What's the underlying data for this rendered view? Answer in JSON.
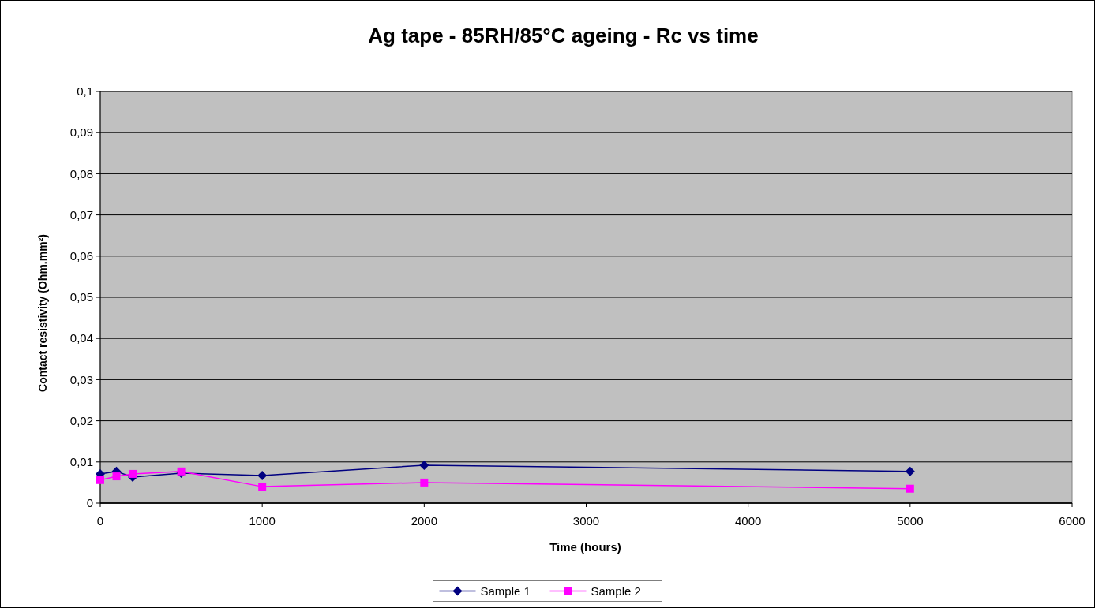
{
  "chart_data": {
    "type": "line",
    "title": "Ag tape - 85RH/85°C ageing - Rc vs time",
    "xlabel": "Time (hours)",
    "ylabel": "Contact resistivity (Ohm.mm²)",
    "x": [
      0,
      100,
      200,
      500,
      1000,
      2000,
      5000
    ],
    "series": [
      {
        "name": "Sample 1",
        "color": "#000080",
        "marker": "diamond",
        "values": [
          0.0071,
          0.0077,
          0.0063,
          0.0073,
          0.0067,
          0.0092,
          0.0077
        ]
      },
      {
        "name": "Sample 2",
        "color": "#ff00ff",
        "marker": "square",
        "values": [
          0.0056,
          0.0065,
          0.0071,
          0.0077,
          0.004,
          0.005,
          0.0035
        ]
      }
    ],
    "xlim": [
      0,
      6000
    ],
    "xticks": [
      0,
      1000,
      2000,
      3000,
      4000,
      5000,
      6000
    ],
    "ylim": [
      0,
      0.1
    ],
    "yticks": [
      0,
      {
        "value": 0.01,
        "label": "0,01"
      },
      {
        "value": 0.02,
        "label": "0,02"
      },
      {
        "value": 0.03,
        "label": "0,03"
      },
      {
        "value": 0.04,
        "label": "0,04"
      },
      {
        "value": 0.05,
        "label": "0,05"
      },
      {
        "value": 0.06,
        "label": "0,06"
      },
      {
        "value": 0.07,
        "label": "0,07"
      },
      {
        "value": 0.08,
        "label": "0,08"
      },
      {
        "value": 0.09,
        "label": "0,09"
      },
      {
        "value": 0.1,
        "label": "0,1"
      }
    ],
    "grid": "y",
    "legend": "bottom"
  }
}
